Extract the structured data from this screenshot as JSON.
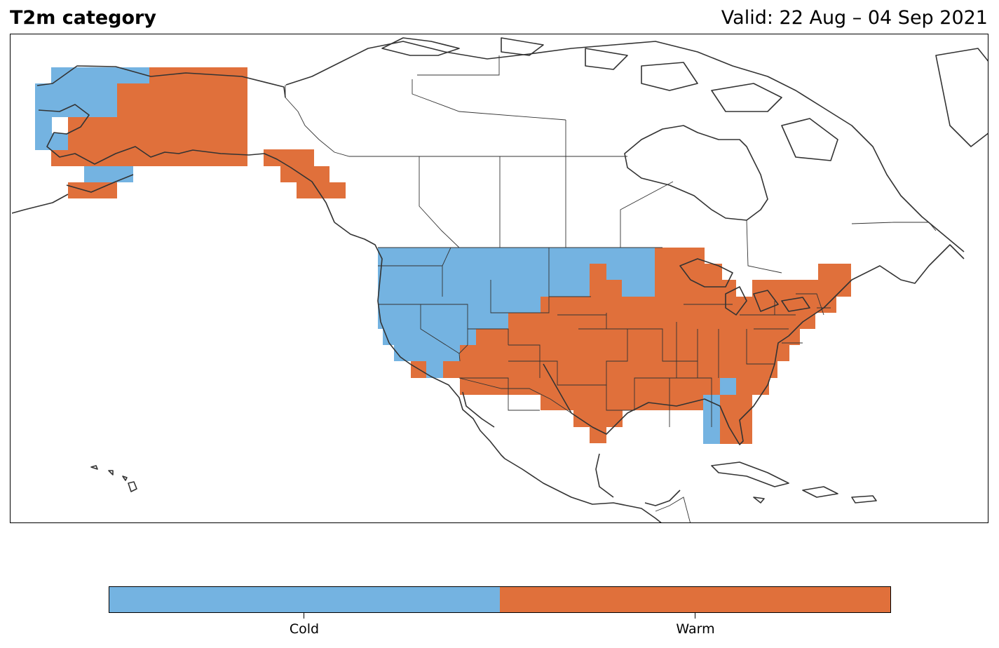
{
  "header": {
    "title": "T2m category",
    "valid_text": "Valid: 22 Aug – 04 Sep 2021"
  },
  "legend": {
    "categories": [
      {
        "label": "Cold",
        "color": "#74b3e1"
      },
      {
        "label": "Warm",
        "color": "#e0703b"
      }
    ]
  },
  "map": {
    "region": "North America",
    "coastline_color": "#333333",
    "states_color": "#333333",
    "cell_regions": [
      {
        "category": "Cold",
        "areas": [
          "western Alaska",
          "Pacific Northwest",
          "northern Rockies",
          "northern Plains",
          "California",
          "Nevada",
          "Utah",
          "Minnesota",
          "southern Florida tip"
        ]
      },
      {
        "category": "Warm",
        "areas": [
          "eastern Alaska",
          "Alaska panhandle",
          "Southwest",
          "southern Plains",
          "Midwest",
          "Great Lakes",
          "Southeast",
          "Northeast",
          "Texas"
        ]
      }
    ]
  }
}
